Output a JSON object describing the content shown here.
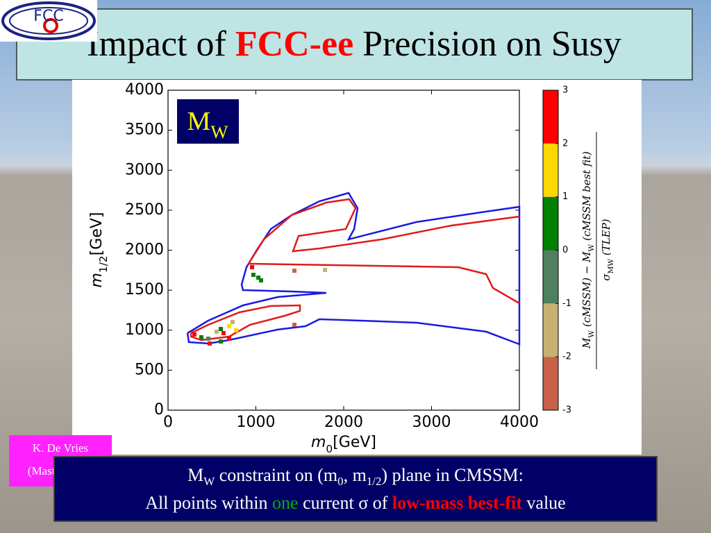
{
  "logo": {
    "text": "FCC"
  },
  "title": [
    {
      "t": "Impact of "
    },
    {
      "t": "FCC-ee",
      "color": "#ff0000",
      "bold": true
    },
    {
      "t": " Precision on Susy"
    }
  ],
  "credit": [
    "K. De Vries",
    "(MasterCode)"
  ],
  "caption": {
    "lines": [
      [
        {
          "t": "M"
        },
        {
          "t": "W",
          "sub": true
        },
        {
          "t": " constraint on (m"
        },
        {
          "t": "0",
          "sub": true
        },
        {
          "t": ", m"
        },
        {
          "t": "1/2",
          "sub": true
        },
        {
          "t": ") plane in CMSSM:"
        }
      ],
      [
        {
          "t": "All points within "
        },
        {
          "t": "one",
          "color": "#00b000"
        },
        {
          "t": " current σ of "
        },
        {
          "t": "low-mass best-fit",
          "color": "#ff0000",
          "bold": true
        },
        {
          "t": " value"
        }
      ]
    ]
  },
  "chart_data": {
    "type": "contour",
    "annotation": [
      {
        "t": "M"
      },
      {
        "t": "W",
        "sub": true
      }
    ],
    "xlabel": [
      {
        "t": "m",
        "italic": true
      },
      {
        "t": "0",
        "sub": true
      },
      {
        "t": "[GeV]"
      }
    ],
    "ylabel": [
      {
        "t": "m",
        "italic": true
      },
      {
        "t": "1/2",
        "sub": true
      },
      {
        "t": "[GeV]"
      }
    ],
    "xlim": [
      0,
      4000
    ],
    "ylim": [
      0,
      4000
    ],
    "xticks": [
      0,
      1000,
      2000,
      3000,
      4000
    ],
    "yticks": [
      0,
      500,
      1000,
      1500,
      2000,
      2500,
      3000,
      3500,
      4000
    ],
    "series": [
      {
        "color": "#1a1ae0",
        "x": [
          221,
          458,
          854,
          1249,
          1802,
          1407,
          854,
          838,
          893,
          1012,
          1170,
          1407,
          1723,
          2055,
          2158,
          2119,
          2055,
          2830,
          3621,
          4000,
          4000,
          3621,
          2830,
          2198,
          1723,
          1565,
          1249,
          696,
          458,
          237,
          221
        ],
        "y": [
          963,
          1119,
          1310,
          1414,
          1466,
          1484,
          1501,
          1571,
          1787,
          2004,
          2265,
          2438,
          2612,
          2716,
          2525,
          2265,
          2135,
          2352,
          2482,
          2542,
          824,
          981,
          1093,
          1119,
          1137,
          1050,
          1007,
          876,
          833,
          850,
          963
        ]
      },
      {
        "color": "#e01a1a",
        "x": [
          4000,
          3225,
          2435,
          1723,
          1423,
          1486,
          2024,
          2134,
          2063,
          1802,
          1407,
          1091,
          917,
          2356,
          3304,
          3621,
          3700,
          4000
        ],
        "y": [
          2421,
          2308,
          2135,
          2022,
          1987,
          2178,
          2265,
          2525,
          2638,
          2595,
          2438,
          2135,
          1831,
          1805,
          1787,
          1701,
          1527,
          1336
        ]
      },
      {
        "color": "#e01a1a",
        "x": [
          261,
          458,
          814,
          1170,
          1502,
          1502,
          1328,
          933,
          696,
          379,
          261,
          261
        ],
        "y": [
          963,
          1067,
          1223,
          1302,
          1310,
          1241,
          1180,
          1067,
          920,
          876,
          920,
          963
        ]
      }
    ],
    "points": {
      "x": [
        957,
        972,
        1028,
        1059,
        1439,
        1787,
        1439,
        300,
        379,
        458,
        474,
        553,
        601,
        632,
        696,
        735,
        696,
        775,
        601
      ],
      "y": [
        1787,
        1692,
        1657,
        1623,
        1744,
        1753,
        1067,
        946,
        911,
        894,
        833,
        981,
        859,
        963,
        1050,
        1102,
        894,
        998,
        1015
      ],
      "values": [
        2.5,
        0.5,
        0.5,
        0.5,
        -2.5,
        -1.5,
        -2.5,
        2.5,
        0.5,
        -0.5,
        2.5,
        -1.5,
        0.5,
        2.5,
        1.5,
        -1.5,
        2.5,
        1.5,
        0.5
      ]
    },
    "colorbar": {
      "lim": [
        -3,
        3
      ],
      "ticks": [
        -3,
        -2,
        -1,
        0,
        1,
        2,
        3
      ],
      "colors": [
        "#c8604a",
        "#c8b070",
        "#4f8060",
        "#008000",
        "#ffd700",
        "#ff0000"
      ],
      "label": {
        "numerator": [
          {
            "t": "M",
            "italic": true
          },
          {
            "t": "W",
            "sub": true
          },
          {
            "t": " (cMSSM)",
            "italic": true
          },
          {
            "t": " − "
          },
          {
            "t": "M",
            "italic": true
          },
          {
            "t": "W",
            "sub": true
          },
          {
            "t": " (cMSSM best fit)",
            "italic": true
          }
        ],
        "denominator": [
          {
            "t": "σ",
            "italic": true
          },
          {
            "t": "MW",
            "sub": true
          },
          {
            "t": " (TLEP)",
            "italic": true
          }
        ]
      }
    }
  }
}
